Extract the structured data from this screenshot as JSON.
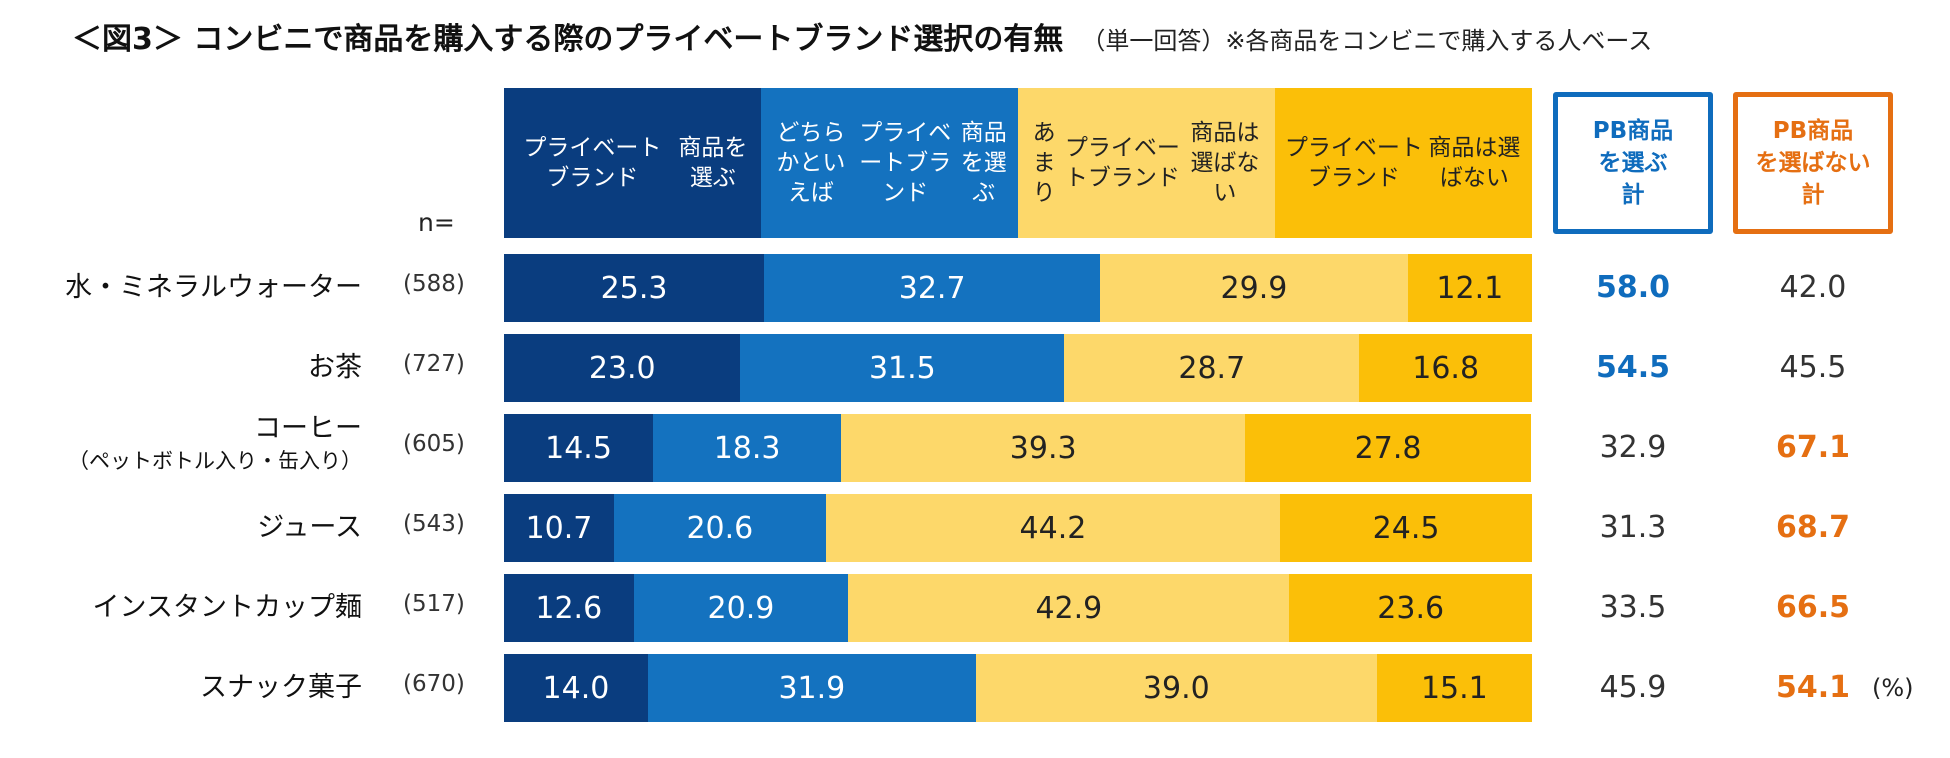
{
  "title": "＜図3＞ コンビニで商品を購入する際のプライベートブランド選択の有無",
  "subtitle": "（単一回答）※各商品をコンビニで購入する人ベース",
  "n_label": "n=",
  "unit": "(%)",
  "colors": {
    "choose_pb": "#0a3d7f",
    "rather_choose": "#1472bf",
    "rather_not": "#fdd86a",
    "not_choose": "#fbbf08",
    "sum_choose": "#0f6cbd",
    "sum_not": "#e56f12"
  },
  "legend": [
    {
      "lines": [
        "プライベートブランド",
        "商品を選ぶ"
      ]
    },
    {
      "lines": [
        "どちらかといえば",
        "プライベートブランド",
        "商品を選ぶ"
      ]
    },
    {
      "lines": [
        "あまり",
        "プライベートブランド",
        "商品は選ばない"
      ]
    },
    {
      "lines": [
        "プライベートブランド",
        "商品は選ばない"
      ]
    }
  ],
  "summary_headers": {
    "choose": [
      "PB商品",
      "を選ぶ",
      "計"
    ],
    "not_choose": [
      "PB商品",
      "を選ばない",
      "計"
    ]
  },
  "chart_data": {
    "type": "bar",
    "stacked": true,
    "orientation": "horizontal",
    "categories": [
      {
        "label": "水・ミネラルウォーター",
        "n": "(588)"
      },
      {
        "label": "お茶",
        "n": "(727)"
      },
      {
        "label": "コーヒー",
        "sub": "（ペットボトル入り・缶入り）",
        "n": "(605)"
      },
      {
        "label": "ジュース",
        "n": "(543)"
      },
      {
        "label": "インスタントカップ麺",
        "n": "(517)"
      },
      {
        "label": "スナック菓子",
        "n": "(670)"
      }
    ],
    "series": [
      {
        "name": "プライベートブランド商品を選ぶ",
        "values": [
          25.3,
          23.0,
          14.5,
          10.7,
          12.6,
          14.0
        ]
      },
      {
        "name": "どちらかといえばプライベートブランド商品を選ぶ",
        "values": [
          32.7,
          31.5,
          18.3,
          20.6,
          20.9,
          31.9
        ]
      },
      {
        "name": "あまりプライベートブランド商品は選ばない",
        "values": [
          29.9,
          28.7,
          39.3,
          44.2,
          42.9,
          39.0
        ]
      },
      {
        "name": "プライベートブランド商品は選ばない",
        "values": [
          12.1,
          16.8,
          27.8,
          24.5,
          23.6,
          15.1
        ]
      }
    ],
    "totals": {
      "choose": [
        58.0,
        54.5,
        32.9,
        31.3,
        33.5,
        45.9
      ],
      "not_choose": [
        42.0,
        45.5,
        67.1,
        68.7,
        66.5,
        54.1
      ],
      "highlight": [
        "choose",
        "choose",
        "not_choose",
        "not_choose",
        "not_choose",
        "not_choose"
      ]
    },
    "xlim": [
      0,
      100
    ]
  }
}
